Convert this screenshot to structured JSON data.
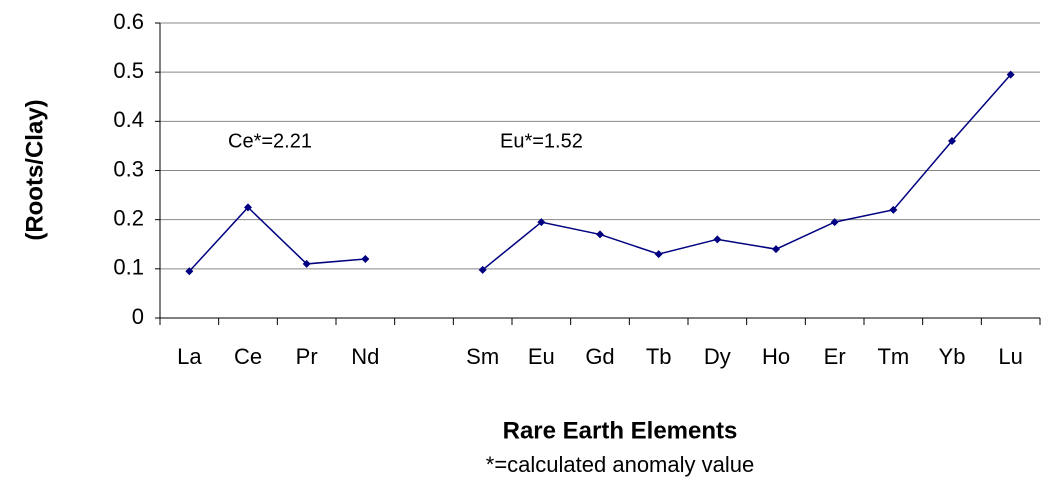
{
  "chart_data": {
    "type": "line",
    "categories": [
      "La",
      "Ce",
      "Pr",
      "Nd",
      null,
      "Sm",
      "Eu",
      "Gd",
      "Tb",
      "Dy",
      "Ho",
      "Er",
      "Tm",
      "Yb",
      "Lu"
    ],
    "values": [
      0.095,
      0.225,
      0.11,
      0.12,
      null,
      0.098,
      0.195,
      0.17,
      0.13,
      0.16,
      0.14,
      0.195,
      0.22,
      0.36,
      0.495
    ],
    "color": "#000080",
    "ylim": [
      0,
      0.6
    ],
    "yticks": [
      0,
      0.1,
      0.2,
      0.3,
      0.4,
      0.5,
      0.6
    ],
    "grid": true,
    "y_label": "(Roots/Clay)",
    "x_label": "Rare Earth Elements",
    "note": "*=calculated anomaly value",
    "annotations": [
      "Ce*=2.21",
      "Eu*=1.52"
    ]
  }
}
